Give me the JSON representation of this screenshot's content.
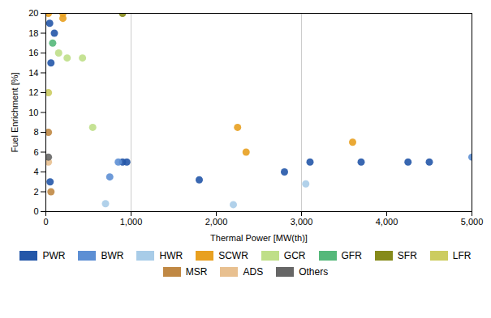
{
  "chart_data": {
    "type": "scatter",
    "x_label": "Thermal Power [MW(th)]",
    "y_label": "Fuel Enrichment [%]",
    "xlim": [
      0,
      5000
    ],
    "ylim": [
      0,
      20
    ],
    "xticks": [
      0,
      1000,
      2000,
      3000,
      4000,
      5000
    ],
    "yticks": [
      0,
      2,
      4,
      6,
      8,
      10,
      12,
      14,
      16,
      18,
      20
    ],
    "vlines": [
      1000,
      3000
    ],
    "marker": "circle",
    "legend": "bottom",
    "series": [
      {
        "name": "PWR",
        "color": "#2457A8",
        "x": [
          45,
          100,
          60,
          50,
          900,
          950,
          1800,
          2800,
          3100,
          3700,
          4250,
          4500
        ],
        "y": [
          19.0,
          18.0,
          15.0,
          3.0,
          5.0,
          5.0,
          3.2,
          4.0,
          5.0,
          5.0,
          5.0,
          5.0
        ]
      },
      {
        "name": "BWR",
        "color": "#5D8FD4",
        "x": [
          750,
          850,
          5000
        ],
        "y": [
          3.5,
          5.0,
          5.5
        ]
      },
      {
        "name": "HWR",
        "color": "#A8CCE8",
        "x": [
          700,
          2200,
          3050
        ],
        "y": [
          0.8,
          0.7,
          2.8
        ]
      },
      {
        "name": "SCWR",
        "color": "#E8A020",
        "x": [
          30,
          200,
          200,
          2250,
          2350,
          3600
        ],
        "y": [
          20.0,
          20.0,
          19.5,
          8.5,
          6.0,
          7.0
        ]
      },
      {
        "name": "GCR",
        "color": "#BFDF88",
        "x": [
          150,
          250,
          430,
          550
        ],
        "y": [
          16.0,
          15.5,
          15.5,
          8.5
        ]
      },
      {
        "name": "GFR",
        "color": "#55B87A",
        "x": [
          80
        ],
        "y": [
          17.0
        ]
      },
      {
        "name": "SFR",
        "color": "#868A1A",
        "x": [
          900
        ],
        "y": [
          20.0
        ]
      },
      {
        "name": "LFR",
        "color": "#CCCC60",
        "x": [
          30
        ],
        "y": [
          12.0
        ]
      },
      {
        "name": "MSR",
        "color": "#C08844",
        "x": [
          30,
          60
        ],
        "y": [
          8.0,
          2.0
        ]
      },
      {
        "name": "ADS",
        "color": "#E8C090",
        "x": [
          30
        ],
        "y": [
          5.0
        ]
      },
      {
        "name": "Others",
        "color": "#666666",
        "x": [
          30
        ],
        "y": [
          5.5
        ]
      }
    ]
  }
}
